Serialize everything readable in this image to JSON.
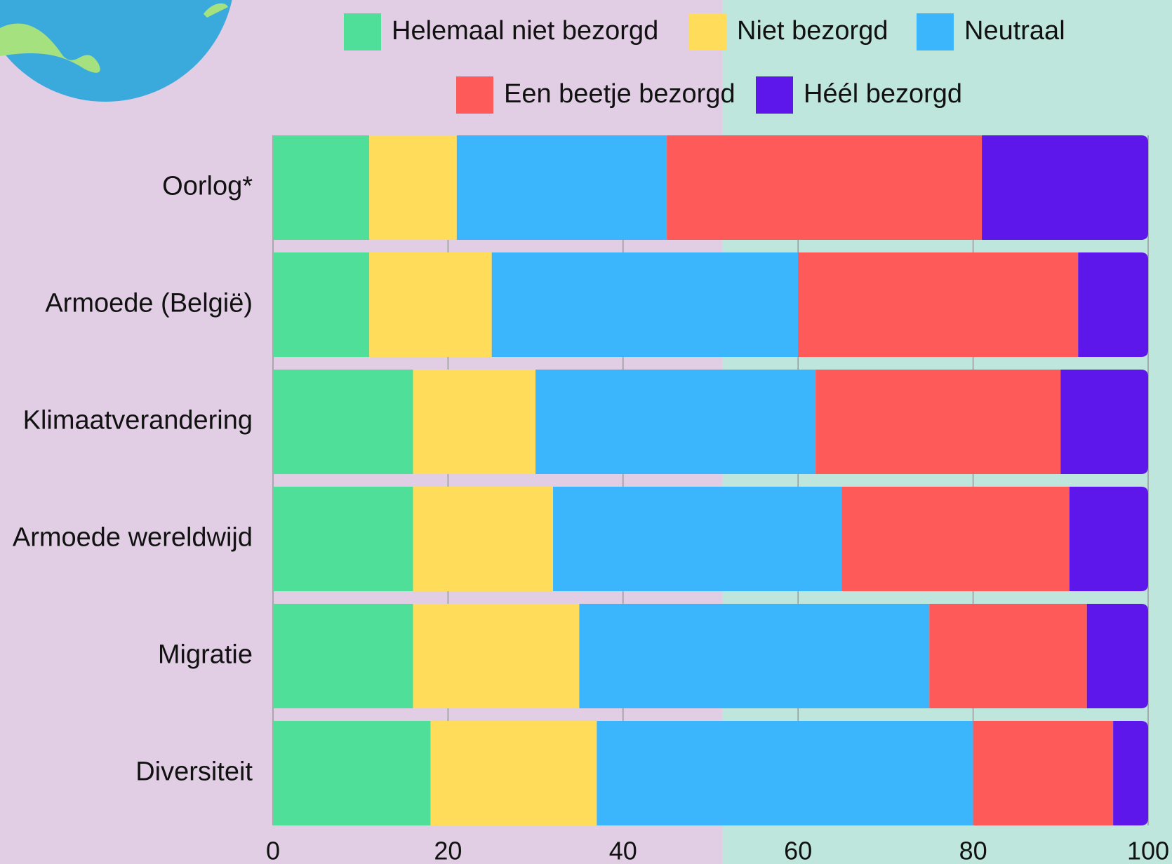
{
  "chart_data": {
    "type": "stacked-barh",
    "categories": [
      "Oorlog*",
      "Armoede (België)",
      "Klimaatverandering",
      "Armoede wereldwijd",
      "Migratie",
      "Diversiteit"
    ],
    "series": [
      {
        "name": "Helemaal niet bezorgd",
        "color": "#4fdf98",
        "values": [
          11,
          11,
          16,
          16,
          16,
          18
        ]
      },
      {
        "name": "Niet bezorgd",
        "color": "#ffdc5a",
        "values": [
          10,
          14,
          14,
          16,
          19,
          19
        ]
      },
      {
        "name": "Neutraal",
        "color": "#3bb6fd",
        "values": [
          24,
          35,
          32,
          33,
          40,
          43
        ]
      },
      {
        "name": "Een beetje bezorgd",
        "color": "#ff5a5a",
        "values": [
          36,
          32,
          28,
          26,
          18,
          16
        ]
      },
      {
        "name": "Héél bezorgd",
        "color": "#5e17eb",
        "values": [
          19,
          8,
          10,
          9,
          7,
          4
        ]
      }
    ],
    "xlim": [
      0,
      100
    ],
    "xticks": [
      0,
      20,
      40,
      60,
      80,
      100
    ],
    "grid": true,
    "legend": "top"
  }
}
